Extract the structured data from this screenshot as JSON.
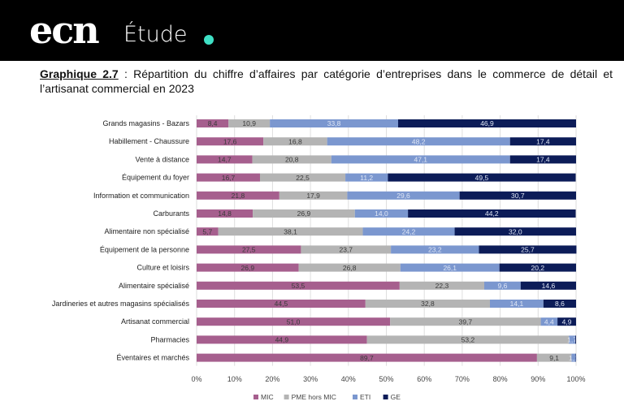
{
  "header": {
    "logo": "ecn",
    "section": "Étude",
    "accent": "#3fe0c5"
  },
  "title": {
    "label": "Graphique 2.7",
    "text": " : Répartition du chiffre d’affaires par catégorie d’entreprises dans le commerce de détail et l’artisanat commercial en 2023"
  },
  "chart_data": {
    "type": "bar",
    "orientation": "horizontal-stacked-100",
    "categories": [
      "Grands magasins - Bazars",
      "Habillement - Chaussure",
      "Vente à distance",
      "Équipement du foyer",
      "Information et communication",
      "Carburants",
      "Alimentaire non spécialisé",
      "Équipement de la personne",
      "Culture et loisirs",
      "Alimentaire spécialisé",
      "Jardineries et autres magasins spécialisés",
      "Artisanat commercial",
      "Pharmacies",
      "Éventaires et marchés"
    ],
    "series": [
      {
        "name": "MIC",
        "color": "#a65f8e",
        "values": [
          8.4,
          17.6,
          14.7,
          16.7,
          21.8,
          14.8,
          5.7,
          27.5,
          26.9,
          53.5,
          44.5,
          51.0,
          44.9,
          89.7
        ],
        "labels": [
          "8,4",
          "17,6",
          "14,7",
          "16,7",
          "21,8",
          "14,8",
          "5,7",
          "27,5",
          "26,9",
          "53,5",
          "44,5",
          "51,0",
          "44,9",
          "89,7"
        ]
      },
      {
        "name": "PME hors MIC",
        "color": "#b4b4b4",
        "values": [
          10.9,
          16.8,
          20.8,
          22.5,
          17.9,
          26.9,
          38.1,
          23.7,
          26.8,
          22.3,
          32.8,
          39.7,
          53.2,
          9.1
        ],
        "labels": [
          "10,9",
          "16,8",
          "20,8",
          "22,5",
          "17,9",
          "26,9",
          "38,1",
          "23,7",
          "26,8",
          "22,3",
          "32,8",
          "39,7",
          "53,2",
          "9,1"
        ]
      },
      {
        "name": "ETI",
        "color": "#7b97cf",
        "values": [
          33.8,
          48.2,
          47.1,
          11.2,
          29.6,
          14.0,
          24.2,
          23.2,
          26.1,
          9.6,
          14.1,
          4.4,
          1.7,
          1.1
        ],
        "labels": [
          "33,8",
          "48,2",
          "47,1",
          "11,2",
          "29,6",
          "14,0",
          "24,2",
          "23,2",
          "26,1",
          "9,6",
          "14,1",
          "4,4",
          "1,7",
          "1,1"
        ]
      },
      {
        "name": "GE",
        "color": "#0c1c58",
        "values": [
          46.9,
          17.4,
          17.4,
          49.5,
          30.7,
          44.2,
          32.0,
          25.7,
          20.2,
          14.6,
          8.6,
          4.9,
          0.2,
          0.1
        ],
        "labels": [
          "46,9",
          "17,4",
          "17,4",
          "49,5",
          "30,7",
          "44,2",
          "32,0",
          "25,7",
          "20,2",
          "14,6",
          "8,6",
          "4,9",
          "",
          ""
        ]
      }
    ],
    "xlim": [
      0,
      100
    ],
    "xticks": [
      "0%",
      "10%",
      "20%",
      "30%",
      "40%",
      "50%",
      "60%",
      "70%",
      "80%",
      "90%",
      "100%"
    ],
    "grid": true,
    "legend": "bottom"
  }
}
